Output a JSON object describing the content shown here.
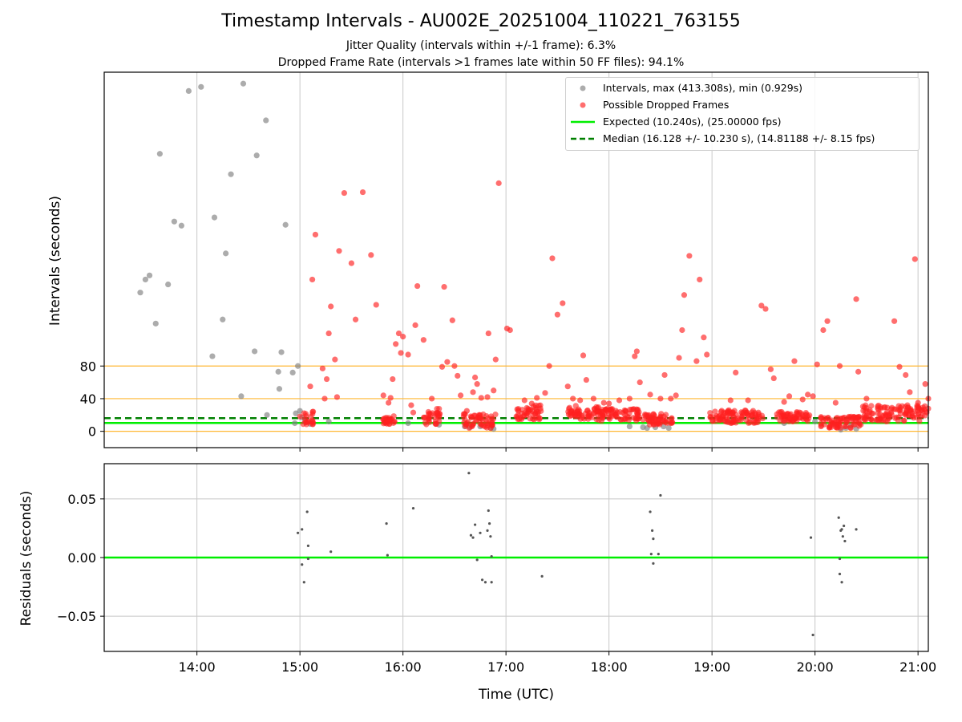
{
  "figure": {
    "title": "Timestamp Intervals - AU002E_20251004_110221_763155",
    "subtitle_1": "Jitter Quality (intervals within +/-1 frame): 6.3%",
    "subtitle_2": "Dropped Frame Rate (intervals >1 frames late within 50 FF files): 94.1%"
  },
  "legend": {
    "intervals": "Intervals, max (413.308s), min (0.929s)",
    "dropped": "Possible Dropped Frames",
    "expected": "Expected (10.240s), (25.00000 fps)",
    "median": "Median (16.128 +/- 10.230 s), (14.81188 +/- 8.15 fps)"
  },
  "colors": {
    "grey": "#808080",
    "red": "#ff2020",
    "expected": "#00ee00",
    "median": "#008000",
    "orange": "#ffb732",
    "grid": "#c8c8c8"
  },
  "chart_data": [
    {
      "type": "scatter",
      "name": "intervals",
      "ylabel": "Intervals (seconds)",
      "xlabel": "",
      "x_ticks": [
        "14:00",
        "15:00",
        "16:00",
        "17:00",
        "18:00",
        "19:00",
        "20:00",
        "21:00"
      ],
      "x_range_hours": [
        13.1,
        21.1
      ],
      "y_ticks": [
        0,
        40,
        80
      ],
      "y_range": [
        -20,
        440
      ],
      "reference_lines": {
        "expected": 10.24,
        "median": 16.128,
        "orange": [
          0,
          40,
          80
        ]
      },
      "grey_points": [
        [
          13.45,
          170
        ],
        [
          13.5,
          186
        ],
        [
          13.54,
          191
        ],
        [
          13.6,
          132
        ],
        [
          13.64,
          340
        ],
        [
          13.72,
          180
        ],
        [
          13.78,
          257
        ],
        [
          13.85,
          252
        ],
        [
          13.92,
          417
        ],
        [
          14.04,
          422
        ],
        [
          14.15,
          92
        ],
        [
          14.17,
          262
        ],
        [
          14.25,
          137
        ],
        [
          14.28,
          218
        ],
        [
          14.33,
          315
        ],
        [
          14.43,
          43
        ],
        [
          14.45,
          426
        ],
        [
          14.56,
          98
        ],
        [
          14.58,
          338
        ],
        [
          14.67,
          381
        ],
        [
          14.68,
          20
        ],
        [
          14.79,
          73
        ],
        [
          14.8,
          52
        ],
        [
          14.82,
          97
        ],
        [
          14.86,
          253
        ],
        [
          14.93,
          72
        ],
        [
          14.96,
          22
        ],
        [
          14.98,
          80
        ],
        [
          15.0,
          25
        ],
        [
          15.02,
          17
        ],
        [
          14.95,
          10
        ],
        [
          15.05,
          12
        ],
        [
          15.1,
          9
        ],
        [
          15.28,
          12
        ],
        [
          16.05,
          10
        ],
        [
          16.35,
          8
        ],
        [
          16.6,
          6
        ],
        [
          16.65,
          5
        ],
        [
          16.75,
          6
        ],
        [
          16.85,
          4
        ],
        [
          16.88,
          3
        ],
        [
          18.2,
          6
        ],
        [
          18.33,
          5
        ],
        [
          18.37,
          4
        ],
        [
          18.45,
          5
        ],
        [
          18.53,
          6
        ],
        [
          18.58,
          4
        ],
        [
          19.15,
          12
        ],
        [
          19.7,
          10
        ],
        [
          20.0,
          12
        ],
        [
          20.2,
          8
        ],
        [
          20.25,
          2
        ],
        [
          20.3,
          4
        ],
        [
          20.35,
          7
        ],
        [
          20.4,
          3
        ]
      ],
      "red_points": [
        [
          15.0,
          18
        ],
        [
          15.05,
          15
        ],
        [
          15.08,
          12
        ],
        [
          15.1,
          55
        ],
        [
          15.12,
          186
        ],
        [
          15.15,
          241
        ],
        [
          15.22,
          77
        ],
        [
          15.24,
          40
        ],
        [
          15.26,
          64
        ],
        [
          15.28,
          120
        ],
        [
          15.3,
          153
        ],
        [
          15.34,
          88
        ],
        [
          15.36,
          42
        ],
        [
          15.38,
          221
        ],
        [
          15.43,
          292
        ],
        [
          15.5,
          206
        ],
        [
          15.54,
          137
        ],
        [
          15.61,
          293
        ],
        [
          15.69,
          216
        ],
        [
          15.74,
          155
        ],
        [
          15.81,
          44
        ],
        [
          15.86,
          35
        ],
        [
          15.88,
          41
        ],
        [
          15.9,
          64
        ],
        [
          15.93,
          107
        ],
        [
          15.96,
          120
        ],
        [
          15.98,
          96
        ],
        [
          16.0,
          116
        ],
        [
          16.05,
          94
        ],
        [
          16.08,
          32
        ],
        [
          16.1,
          23
        ],
        [
          16.12,
          130
        ],
        [
          16.14,
          178
        ],
        [
          16.2,
          112
        ],
        [
          16.28,
          40
        ],
        [
          16.32,
          22
        ],
        [
          16.38,
          79
        ],
        [
          16.4,
          177
        ],
        [
          16.43,
          85
        ],
        [
          16.48,
          136
        ],
        [
          16.5,
          80
        ],
        [
          16.53,
          68
        ],
        [
          16.56,
          44
        ],
        [
          16.62,
          25
        ],
        [
          16.68,
          48
        ],
        [
          16.7,
          66
        ],
        [
          16.72,
          58
        ],
        [
          16.76,
          41
        ],
        [
          16.82,
          42
        ],
        [
          16.83,
          120
        ],
        [
          16.88,
          50
        ],
        [
          16.9,
          88
        ],
        [
          16.93,
          304
        ],
        [
          17.01,
          126
        ],
        [
          17.04,
          124
        ],
        [
          17.12,
          25
        ],
        [
          17.18,
          38
        ],
        [
          17.25,
          34
        ],
        [
          17.3,
          41
        ],
        [
          17.38,
          47
        ],
        [
          17.42,
          80
        ],
        [
          17.45,
          212
        ],
        [
          17.5,
          143
        ],
        [
          17.55,
          157
        ],
        [
          17.6,
          55
        ],
        [
          17.65,
          40
        ],
        [
          17.72,
          38
        ],
        [
          17.75,
          93
        ],
        [
          17.78,
          63
        ],
        [
          17.85,
          40
        ],
        [
          17.95,
          35
        ],
        [
          18.0,
          34
        ],
        [
          18.1,
          38
        ],
        [
          18.2,
          40
        ],
        [
          18.25,
          92
        ],
        [
          18.27,
          98
        ],
        [
          18.3,
          60
        ],
        [
          18.4,
          45
        ],
        [
          18.5,
          40
        ],
        [
          18.54,
          69
        ],
        [
          18.6,
          40
        ],
        [
          18.65,
          44
        ],
        [
          18.68,
          90
        ],
        [
          18.71,
          124
        ],
        [
          18.73,
          167
        ],
        [
          18.78,
          215
        ],
        [
          18.85,
          86
        ],
        [
          18.88,
          186
        ],
        [
          18.92,
          115
        ],
        [
          18.95,
          94
        ],
        [
          19.18,
          38
        ],
        [
          19.23,
          72
        ],
        [
          19.35,
          38
        ],
        [
          19.48,
          154
        ],
        [
          19.52,
          150
        ],
        [
          19.57,
          76
        ],
        [
          19.6,
          65
        ],
        [
          19.7,
          36
        ],
        [
          19.75,
          43
        ],
        [
          19.8,
          86
        ],
        [
          19.88,
          39
        ],
        [
          19.93,
          45
        ],
        [
          19.98,
          43
        ],
        [
          20.02,
          82
        ],
        [
          20.08,
          124
        ],
        [
          20.12,
          135
        ],
        [
          20.2,
          35
        ],
        [
          20.24,
          80
        ],
        [
          20.4,
          162
        ],
        [
          20.42,
          73
        ],
        [
          20.5,
          40
        ],
        [
          20.77,
          135
        ],
        [
          20.82,
          79
        ],
        [
          20.88,
          69
        ],
        [
          20.92,
          48
        ],
        [
          20.97,
          211
        ],
        [
          21.0,
          35
        ],
        [
          21.07,
          58
        ],
        [
          21.1,
          40
        ]
      ],
      "red_clusters": [
        [
          15.03,
          15.13,
          8,
          25
        ],
        [
          15.8,
          15.92,
          8,
          20
        ],
        [
          16.2,
          16.37,
          8,
          28
        ],
        [
          16.58,
          16.9,
          4,
          22
        ],
        [
          17.1,
          17.35,
          14,
          32
        ],
        [
          17.6,
          17.9,
          14,
          32
        ],
        [
          17.9,
          18.3,
          12,
          28
        ],
        [
          18.33,
          18.62,
          8,
          22
        ],
        [
          18.98,
          19.5,
          10,
          26
        ],
        [
          19.62,
          19.95,
          12,
          24
        ],
        [
          20.05,
          20.45,
          4,
          18
        ],
        [
          20.45,
          21.1,
          12,
          32
        ]
      ]
    },
    {
      "type": "scatter",
      "name": "residuals",
      "ylabel": "Residuals (seconds)",
      "xlabel": "Time (UTC)",
      "x_ticks": [
        "14:00",
        "15:00",
        "16:00",
        "17:00",
        "18:00",
        "19:00",
        "20:00",
        "21:00"
      ],
      "x_range_hours": [
        13.1,
        21.1
      ],
      "y_ticks": [
        "0.05",
        "0.00",
        "−0.05"
      ],
      "y_range": [
        -0.08,
        0.08
      ],
      "reference_line": 0.0,
      "points": [
        [
          14.98,
          0.021
        ],
        [
          15.02,
          0.024
        ],
        [
          15.04,
          -0.021
        ],
        [
          15.02,
          -0.006
        ],
        [
          15.07,
          0.039
        ],
        [
          15.08,
          0.01
        ],
        [
          15.08,
          -0.001
        ],
        [
          15.3,
          0.005
        ],
        [
          15.84,
          0.029
        ],
        [
          15.85,
          0.002
        ],
        [
          16.1,
          0.042
        ],
        [
          16.64,
          0.072
        ],
        [
          16.66,
          0.019
        ],
        [
          16.68,
          0.017
        ],
        [
          16.7,
          0.028
        ],
        [
          16.72,
          -0.002
        ],
        [
          16.75,
          0.021
        ],
        [
          16.77,
          -0.019
        ],
        [
          16.8,
          -0.021
        ],
        [
          16.82,
          0.023
        ],
        [
          16.83,
          0.04
        ],
        [
          16.84,
          0.029
        ],
        [
          16.85,
          0.018
        ],
        [
          16.86,
          -0.021
        ],
        [
          16.86,
          0.001
        ],
        [
          17.35,
          -0.016
        ],
        [
          18.4,
          0.039
        ],
        [
          18.42,
          0.023
        ],
        [
          18.43,
          0.016
        ],
        [
          18.41,
          0.003
        ],
        [
          18.43,
          -0.005
        ],
        [
          18.48,
          0.003
        ],
        [
          18.5,
          0.053
        ],
        [
          19.96,
          0.017
        ],
        [
          19.98,
          -0.066
        ],
        [
          20.23,
          0.034
        ],
        [
          20.25,
          0.023
        ],
        [
          20.27,
          0.018
        ],
        [
          20.28,
          0.027
        ],
        [
          20.26,
          0.024
        ],
        [
          20.29,
          0.014
        ],
        [
          20.24,
          -0.001
        ],
        [
          20.24,
          -0.014
        ],
        [
          20.26,
          -0.021
        ],
        [
          20.4,
          0.024
        ]
      ]
    }
  ]
}
